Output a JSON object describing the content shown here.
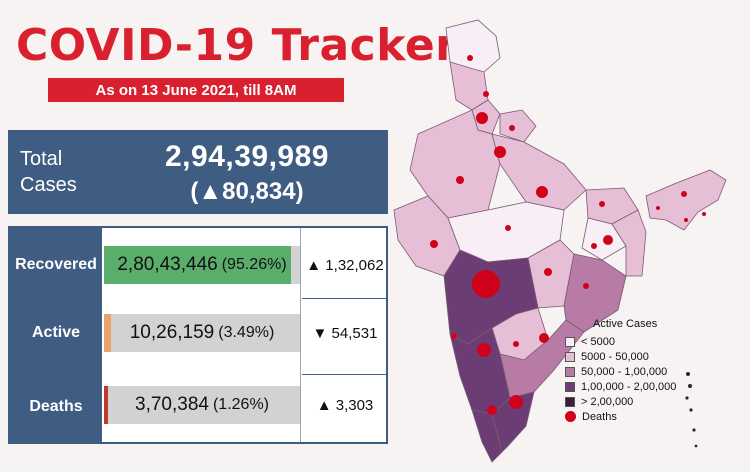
{
  "header": {
    "title": "COVID-19 Tracker",
    "date_label": "As on 13 June 2021, till 8AM"
  },
  "total": {
    "label_line1": "Total",
    "label_line2": "Cases",
    "value": "2,94,39,989",
    "change": "(▲80,834)"
  },
  "stats": [
    {
      "label": "Recovered",
      "value": "2,80,43,446",
      "percent_text": "(95.26%)",
      "percent": 95.26,
      "bar_color": "#5aad6b",
      "change": "▲ 1,32,062"
    },
    {
      "label": "Active",
      "value": "10,26,159",
      "percent_text": "(3.49%)",
      "percent": 3.49,
      "bar_color": "#e8a26c",
      "change": "▼ 54,531"
    },
    {
      "label": "Deaths",
      "value": "3,70,384",
      "percent_text": "(1.26%)",
      "percent": 1.26,
      "bar_color": "#c0392b",
      "change": "▲ 3,303"
    }
  ],
  "legend": {
    "title": "Active Cases",
    "items": [
      {
        "label": "< 5000",
        "color": "#f8eef6"
      },
      {
        "label": "5000 - 50,000",
        "color": "#e6bfd6"
      },
      {
        "label": "50,000 - 1,00,000",
        "color": "#b77ba6"
      },
      {
        "label": "1,00,000 - 2,00,000",
        "color": "#6b3d74"
      },
      {
        "label": "> 2,00,000",
        "color": "#3a1d3e"
      }
    ],
    "deaths_label": "Deaths",
    "deaths_color": "#d0021b"
  },
  "colors": {
    "title_red": "#d9202e",
    "panel_blue": "#3f5c82",
    "bar_track": "#d2d2d2"
  }
}
